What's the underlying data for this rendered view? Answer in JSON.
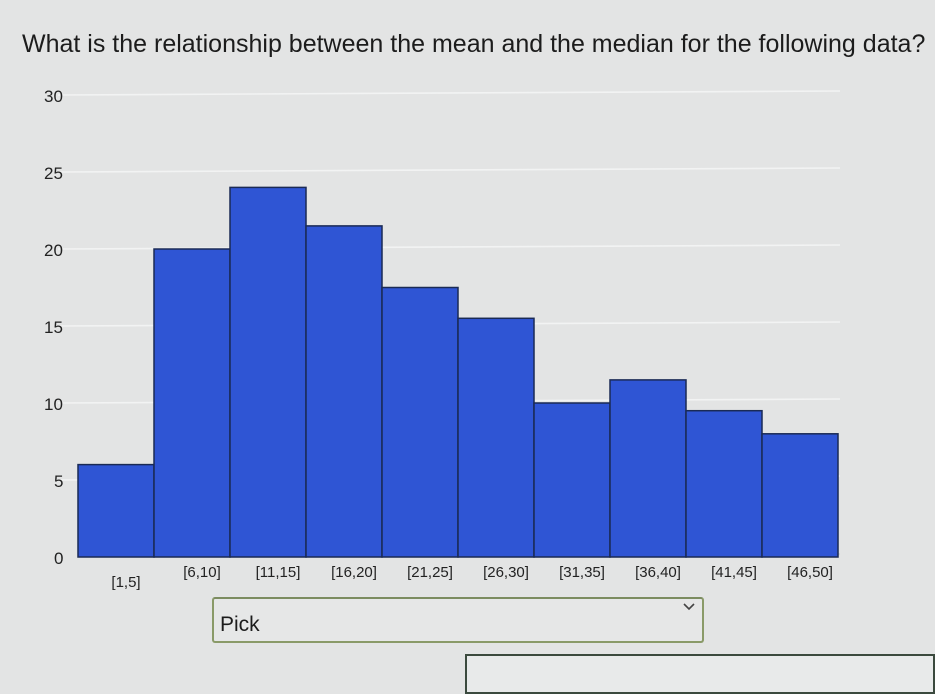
{
  "question": "What is the relationship between the mean and the median for the following data?",
  "chart_data": {
    "type": "bar",
    "categories": [
      "[1,5]",
      "[6,10]",
      "[11,15]",
      "[16,20]",
      "[21,25]",
      "[26,30]",
      "[31,35]",
      "[36,40]",
      "[41,45]",
      "[46,50]"
    ],
    "values": [
      6,
      20,
      24,
      21.5,
      17.5,
      15.5,
      10,
      11.5,
      9.5,
      8
    ],
    "yticks": [
      "0",
      "5",
      "10",
      "15",
      "20",
      "25",
      "30"
    ],
    "ylim": [
      0,
      30
    ],
    "grid": true,
    "bar_color": "#2f55d4"
  },
  "answer_select": {
    "value": "Pick"
  }
}
